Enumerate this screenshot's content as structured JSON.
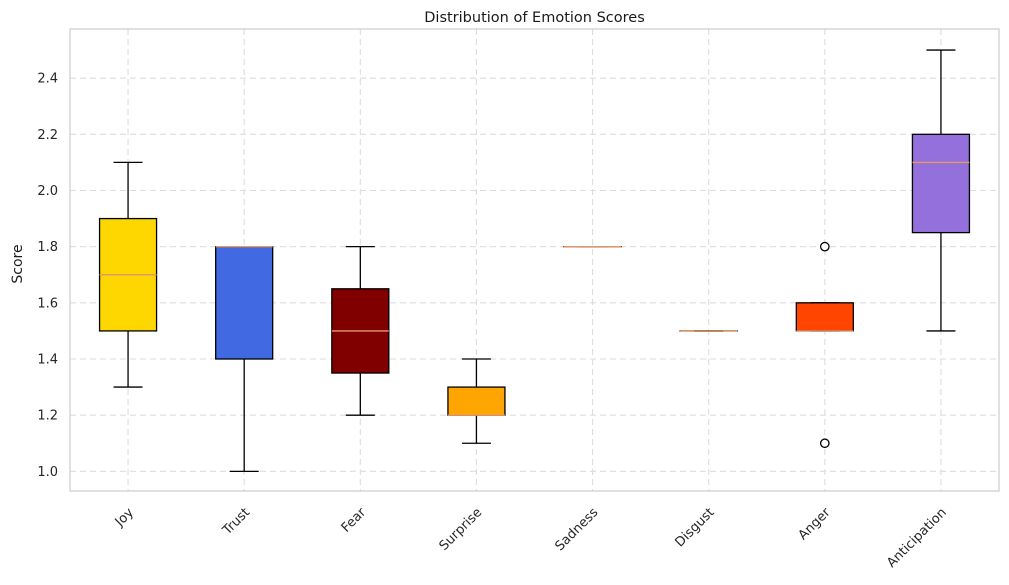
{
  "chart_data": {
    "type": "box",
    "title": "Distribution of Emotion Scores",
    "xlabel": "",
    "ylabel": "Score",
    "ylim": [
      0.93,
      2.575
    ],
    "yticks": [
      1.0,
      1.2,
      1.4,
      1.6,
      1.8,
      2.0,
      2.2,
      2.4
    ],
    "ytick_labels": [
      "1.0",
      "1.2",
      "1.4",
      "1.6",
      "1.8",
      "2.0",
      "2.2",
      "2.4"
    ],
    "grid": true,
    "grid_style": "dashed",
    "x_tick_rotation_deg": 45,
    "median_color": "#e39a6a",
    "categories": [
      "Joy",
      "Trust",
      "Fear",
      "Surprise",
      "Sadness",
      "Disgust",
      "Anger",
      "Anticipation"
    ],
    "boxes": [
      {
        "label": "Joy",
        "whisker_low": 1.3,
        "q1": 1.5,
        "median": 1.7,
        "q3": 1.9,
        "whisker_high": 2.1,
        "outliers": [],
        "color": "#ffd700"
      },
      {
        "label": "Trust",
        "whisker_low": 1.0,
        "q1": 1.4,
        "median": 1.8,
        "q3": 1.8,
        "whisker_high": 1.8,
        "outliers": [],
        "color": "#4169e1"
      },
      {
        "label": "Fear",
        "whisker_low": 1.2,
        "q1": 1.35,
        "median": 1.5,
        "q3": 1.65,
        "whisker_high": 1.8,
        "outliers": [],
        "color": "#800000"
      },
      {
        "label": "Surprise",
        "whisker_low": 1.1,
        "q1": 1.2,
        "median": 1.2,
        "q3": 1.3,
        "whisker_high": 1.4,
        "outliers": [],
        "color": "#ffa500"
      },
      {
        "label": "Sadness",
        "whisker_low": 1.8,
        "q1": 1.8,
        "median": 1.8,
        "q3": 1.8,
        "whisker_high": 1.8,
        "outliers": [],
        "color": "#4682b4"
      },
      {
        "label": "Disgust",
        "whisker_low": 1.5,
        "q1": 1.5,
        "median": 1.5,
        "q3": 1.5,
        "whisker_high": 1.5,
        "outliers": [],
        "color": "#228b22"
      },
      {
        "label": "Anger",
        "whisker_low": 1.5,
        "q1": 1.5,
        "median": 1.5,
        "q3": 1.6,
        "whisker_high": 1.6,
        "outliers": [
          1.8,
          1.1
        ],
        "color": "#ff4500"
      },
      {
        "label": "Anticipation",
        "whisker_low": 1.5,
        "q1": 1.85,
        "median": 2.1,
        "q3": 2.2,
        "whisker_high": 2.5,
        "outliers": [],
        "color": "#9370db"
      }
    ]
  }
}
